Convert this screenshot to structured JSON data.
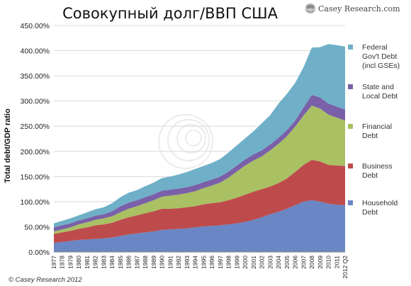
{
  "chart_data": {
    "type": "area",
    "stacked": true,
    "title": "Совокупный долг/ВВП США",
    "ylabel": "Total debt/GDP ratio",
    "xlabel": "",
    "ylim": [
      0,
      450
    ],
    "yticks": [
      "0.00%",
      "50.00%",
      "100.00%",
      "150.00%",
      "200.00%",
      "250.00%",
      "300.00%",
      "350.00%",
      "400.00%",
      "450.00%"
    ],
    "grid": true,
    "legend": "right",
    "x": [
      "1977",
      "1978",
      "1979",
      "1980",
      "1981",
      "1982",
      "1983",
      "1984",
      "1985",
      "1986",
      "1987",
      "1988",
      "1989",
      "1990",
      "1991",
      "1992",
      "1993",
      "1994",
      "1995",
      "1996",
      "1997",
      "1998",
      "1999",
      "2000",
      "2001",
      "2002",
      "2003",
      "2004",
      "2005",
      "2006",
      "2007",
      "2008",
      "2009",
      "2010",
      "2011",
      "2012 Q2"
    ],
    "series": [
      {
        "name": "Household Debt",
        "color": "#6a86c4",
        "values": [
          18,
          20,
          22,
          24,
          25,
          26,
          27,
          29,
          32,
          35,
          37,
          39,
          41,
          44,
          45,
          46,
          47,
          49,
          51,
          52,
          53,
          55,
          57,
          60,
          64,
          69,
          75,
          80,
          86,
          93,
          100,
          103,
          100,
          96,
          94,
          93
        ]
      },
      {
        "name": "Business Debt",
        "color": "#be4b4b",
        "values": [
          18,
          19,
          20,
          22,
          24,
          27,
          28,
          29,
          32,
          34,
          36,
          38,
          40,
          42,
          41,
          41,
          42,
          42,
          44,
          45,
          46,
          48,
          51,
          54,
          56,
          56,
          55,
          57,
          60,
          66,
          73,
          80,
          80,
          77,
          78,
          78
        ]
      },
      {
        "name": "Financial Debt",
        "color": "#a9c063",
        "values": [
          5,
          6,
          7,
          9,
          10,
          11,
          12,
          13,
          15,
          17,
          18,
          20,
          22,
          24,
          26,
          27,
          28,
          30,
          32,
          35,
          39,
          45,
          52,
          58,
          62,
          65,
          72,
          78,
          84,
          90,
          98,
          108,
          105,
          100,
          95,
          90
        ]
      },
      {
        "name": "State and Local Debt",
        "color": "#7a60a8",
        "values": [
          8,
          8,
          8,
          8,
          8,
          8,
          8,
          10,
          12,
          12,
          12,
          12,
          12,
          12,
          12,
          12,
          12,
          12,
          12,
          12,
          12,
          12,
          12,
          12,
          12,
          12,
          12,
          12,
          12,
          12,
          16,
          21,
          22,
          22,
          22,
          22
        ]
      },
      {
        "name": "Federal Gov't Debt (incl GSEs)",
        "color": "#6fb0c8",
        "legend_lines": [
          "Federal",
          "Gov't Debt",
          "(incl GSEs)"
        ],
        "values": [
          8,
          9,
          10,
          10,
          12,
          13,
          14,
          16,
          18,
          20,
          20,
          22,
          23,
          25,
          26,
          28,
          30,
          32,
          32,
          33,
          35,
          38,
          40,
          42,
          46,
          54,
          58,
          68,
          72,
          75,
          80,
          94,
          100,
          118,
          122,
          125
        ]
      }
    ],
    "legend_labels": [
      [
        "Federal",
        "Gov't Debt",
        "(incl GSEs)"
      ],
      [
        "State and",
        "Local Debt"
      ],
      [
        "Financial",
        "Debt"
      ],
      [
        "Business",
        "Debt"
      ],
      [
        "Household",
        "Debt"
      ]
    ],
    "legend_colors": [
      "#6fb0c8",
      "#7a60a8",
      "#a9c063",
      "#be4b4b",
      "#6a86c4"
    ],
    "copyright": "© Casey Research 2012",
    "brand": "Casey Research.com",
    "brand_color": "#444444"
  }
}
